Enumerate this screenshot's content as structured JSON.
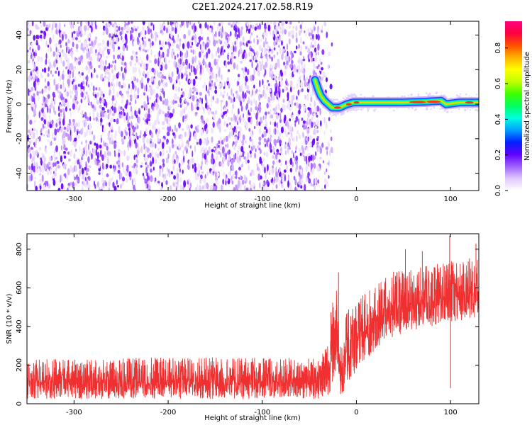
{
  "title": "C2E1.2024.217.02.58.R19",
  "chart_data": [
    {
      "type": "heatmap",
      "xlabel": "Height of straight line (km)",
      "ylabel": "Frequency (Hz)",
      "xlim": [
        -350,
        130
      ],
      "ylim": [
        -50,
        48
      ],
      "xticks": [
        -300,
        -200,
        -100,
        0,
        100
      ],
      "xtick_labels": [
        "-300",
        "-200",
        "-100",
        "0",
        "100"
      ],
      "yticks": [
        -40,
        -20,
        0,
        20,
        40
      ],
      "ytick_labels": [
        "-40",
        "-20",
        "0",
        "20",
        "40"
      ],
      "noise_region_x": [
        -350,
        -26
      ],
      "noise_cutoff_x": -40,
      "carrier": [
        {
          "x": -44,
          "y": 14
        },
        {
          "x": -41,
          "y": 9
        },
        {
          "x": -38,
          "y": 5
        },
        {
          "x": -34,
          "y": 2
        },
        {
          "x": -30,
          "y": 0
        },
        {
          "x": -26,
          "y": -2
        },
        {
          "x": -18,
          "y": -2
        },
        {
          "x": -10,
          "y": 0
        },
        {
          "x": -3,
          "y": 1
        },
        {
          "x": 0,
          "y": 1
        },
        {
          "x": 20,
          "y": 1
        },
        {
          "x": 50,
          "y": 1
        },
        {
          "x": 75,
          "y": 1.5
        },
        {
          "x": 90,
          "y": 2
        },
        {
          "x": 95,
          "y": 0
        },
        {
          "x": 110,
          "y": 1
        },
        {
          "x": 130,
          "y": 1
        }
      ],
      "colorbar": {
        "label": "Normalized spectral amplitude",
        "range": [
          0,
          0.95
        ],
        "ticks": [
          0.0,
          0.2,
          0.4,
          0.6,
          0.8
        ],
        "tick_labels": [
          "0.0",
          "0.2",
          "0.4",
          "0.6",
          "0.8"
        ],
        "colors": [
          "#ffffff",
          "#e0c8ff",
          "#a060ff",
          "#6000ff",
          "#0020ff",
          "#00a0ff",
          "#00ffe0",
          "#00ff60",
          "#40ff00",
          "#c0ff00",
          "#ffff00",
          "#ffb000",
          "#ff5000",
          "#ff0040",
          "#ff0080"
        ]
      }
    },
    {
      "type": "line",
      "xlabel": "Height of straight line (km)",
      "ylabel": "SNR (10 * v/v)",
      "xlim": [
        -350,
        130
      ],
      "ylim": [
        0,
        880
      ],
      "xticks": [
        -300,
        -200,
        -100,
        0,
        100
      ],
      "xtick_labels": [
        "-300",
        "-200",
        "-100",
        "0",
        "100"
      ],
      "yticks": [
        0,
        200,
        400,
        600,
        800
      ],
      "ytick_labels": [
        "0",
        "200",
        "400",
        "600",
        "800"
      ],
      "color": "#f03030",
      "envelope": [
        {
          "x": -350,
          "low": 25,
          "mean": 110,
          "high": 230
        },
        {
          "x": -200,
          "low": 25,
          "mean": 110,
          "high": 240
        },
        {
          "x": -100,
          "low": 25,
          "mean": 110,
          "high": 240
        },
        {
          "x": -40,
          "low": 25,
          "mean": 115,
          "high": 235
        },
        {
          "x": -30,
          "low": 30,
          "mean": 170,
          "high": 350
        },
        {
          "x": -25,
          "low": 100,
          "mean": 300,
          "high": 570
        },
        {
          "x": -20,
          "low": 120,
          "mean": 350,
          "high": 640
        },
        {
          "x": -18,
          "low": 40,
          "mean": 130,
          "high": 300
        },
        {
          "x": -14,
          "low": 20,
          "mean": 150,
          "high": 300
        },
        {
          "x": -10,
          "low": 100,
          "mean": 260,
          "high": 500
        },
        {
          "x": 0,
          "low": 170,
          "mean": 330,
          "high": 540
        },
        {
          "x": 20,
          "low": 280,
          "mean": 430,
          "high": 610
        },
        {
          "x": 40,
          "low": 350,
          "mean": 480,
          "high": 690
        },
        {
          "x": 60,
          "low": 380,
          "mean": 510,
          "high": 700
        },
        {
          "x": 80,
          "low": 400,
          "mean": 530,
          "high": 720
        },
        {
          "x": 100,
          "low": 420,
          "mean": 550,
          "high": 740
        },
        {
          "x": 130,
          "low": 450,
          "mean": 570,
          "high": 760
        }
      ],
      "spikes": [
        {
          "x": -19,
          "y": 680
        },
        {
          "x": 99,
          "y": 870
        },
        {
          "x": 100,
          "y": 80
        },
        {
          "x": 127,
          "y": 830
        },
        {
          "x": 52,
          "y": 800
        },
        {
          "x": 70,
          "y": 790
        }
      ]
    }
  ]
}
